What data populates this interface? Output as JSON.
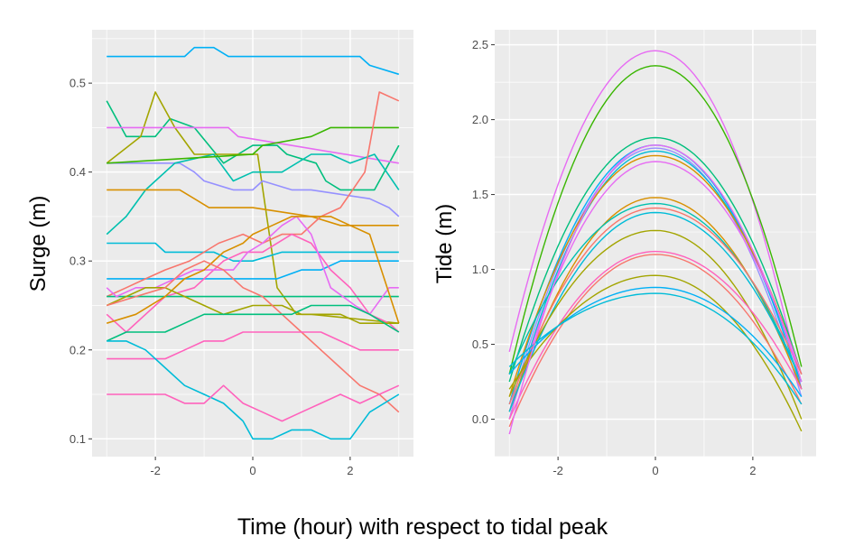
{
  "figure": {
    "xlabel": "Time (hour) with respect to tidal peak"
  },
  "chart_data": [
    {
      "type": "line",
      "ylabel": "Surge (m)",
      "xlim": [
        -3.3,
        3.3
      ],
      "ylim": [
        0.08,
        0.56
      ],
      "xticks": [
        -2,
        0,
        2
      ],
      "xtick_labels": [
        "-2",
        "0",
        "2"
      ],
      "yticks": [
        0.1,
        0.2,
        0.3,
        0.4,
        0.5
      ],
      "ytick_labels": [
        "0.1",
        "0.2",
        "0.3",
        "0.4",
        "0.5"
      ],
      "grid": true,
      "legend": "none",
      "series": [
        {
          "color": "#00b0f6",
          "x": [
            -3,
            -1.4,
            -1.2,
            -0.8,
            -0.5,
            2.2,
            2.4,
            3
          ],
          "y": [
            0.53,
            0.53,
            0.54,
            0.54,
            0.53,
            0.53,
            0.52,
            0.51
          ]
        },
        {
          "color": "#00bf7d",
          "x": [
            -3,
            -2.8,
            -2.6,
            -2,
            -1.7,
            -1.2,
            -0.9,
            -0.6,
            0,
            0.5,
            0.7,
            1.3,
            1.5,
            1.8,
            2.5,
            3
          ],
          "y": [
            0.48,
            0.46,
            0.44,
            0.44,
            0.46,
            0.45,
            0.43,
            0.41,
            0.43,
            0.43,
            0.42,
            0.41,
            0.39,
            0.38,
            0.38,
            0.43
          ]
        },
        {
          "color": "#a3a500",
          "x": [
            -3,
            -2.3,
            -2,
            -1.6,
            -1.2,
            0.1,
            0.5,
            0.9,
            1.2,
            3
          ],
          "y": [
            0.41,
            0.44,
            0.49,
            0.45,
            0.42,
            0.42,
            0.27,
            0.24,
            0.24,
            0.23
          ]
        },
        {
          "color": "#e76bf3",
          "x": [
            -3,
            -0.5,
            -0.3,
            3
          ],
          "y": [
            0.45,
            0.45,
            0.44,
            0.41
          ]
        },
        {
          "color": "#9590ff",
          "x": [
            -3,
            -1.5,
            -1.2,
            -1,
            -0.4,
            0,
            0.2,
            0.8,
            1.2,
            2.4,
            2.8,
            3
          ],
          "y": [
            0.41,
            0.41,
            0.4,
            0.39,
            0.38,
            0.38,
            0.39,
            0.38,
            0.38,
            0.37,
            0.36,
            0.35
          ]
        },
        {
          "color": "#00c0af",
          "x": [
            -3,
            -2.6,
            -2.2,
            -2,
            -1.6,
            -0.8,
            -0.4,
            0,
            0.6,
            1.2,
            1.6,
            2,
            2.5,
            3
          ],
          "y": [
            0.33,
            0.35,
            0.38,
            0.39,
            0.41,
            0.42,
            0.39,
            0.4,
            0.4,
            0.42,
            0.42,
            0.41,
            0.42,
            0.38
          ]
        },
        {
          "color": "#d89000",
          "x": [
            -3,
            -1.8,
            -1.5,
            -1.2,
            -0.9,
            0,
            1.2,
            1.8,
            3
          ],
          "y": [
            0.38,
            0.38,
            0.38,
            0.37,
            0.36,
            0.36,
            0.35,
            0.34,
            0.34
          ]
        },
        {
          "color": "#39b600",
          "x": [
            -3,
            0,
            0.2,
            1.2,
            1.6,
            3
          ],
          "y": [
            0.41,
            0.42,
            0.43,
            0.44,
            0.45,
            0.45
          ]
        },
        {
          "color": "#00bcd8",
          "x": [
            -3,
            -2,
            -1.8,
            -0.8,
            -0.4,
            0,
            0.6,
            0.8,
            3
          ],
          "y": [
            0.32,
            0.32,
            0.31,
            0.31,
            0.3,
            0.3,
            0.31,
            0.31,
            0.31
          ]
        },
        {
          "color": "#00b0f6",
          "x": [
            -3,
            -1.6,
            -1.3,
            0,
            0.5,
            1,
            1.4,
            1.8,
            2.4,
            2.6,
            3
          ],
          "y": [
            0.28,
            0.28,
            0.28,
            0.28,
            0.28,
            0.29,
            0.29,
            0.3,
            0.3,
            0.3,
            0.3
          ]
        },
        {
          "color": "#f8766d",
          "x": [
            -3,
            -2.6,
            -2.2,
            -1.8,
            -1.3,
            -0.7,
            -0.2,
            0.2,
            0.6,
            1,
            1.4,
            1.8,
            2.3,
            2.6,
            3
          ],
          "y": [
            0.26,
            0.27,
            0.28,
            0.29,
            0.3,
            0.32,
            0.33,
            0.32,
            0.33,
            0.33,
            0.35,
            0.36,
            0.4,
            0.49,
            0.48
          ]
        },
        {
          "color": "#ff62bc",
          "x": [
            -3,
            -2.6,
            -2.2,
            -1.8,
            -1.2,
            -0.6,
            -0.2,
            0.2,
            0.8,
            1.2,
            1.6,
            2,
            2.4,
            2.8,
            3
          ],
          "y": [
            0.24,
            0.22,
            0.24,
            0.26,
            0.27,
            0.3,
            0.31,
            0.31,
            0.33,
            0.32,
            0.29,
            0.27,
            0.24,
            0.23,
            0.22
          ]
        },
        {
          "color": "#00bf7d",
          "x": [
            -3,
            -2.2,
            -1.8,
            -1,
            0,
            0.4,
            0.8,
            1.6,
            3
          ],
          "y": [
            0.26,
            0.26,
            0.26,
            0.26,
            0.26,
            0.26,
            0.26,
            0.26,
            0.26
          ]
        },
        {
          "color": "#e76bf3",
          "x": [
            -3,
            -2.8,
            -2.4,
            -2,
            -1.6,
            -1.2,
            -0.4,
            -0.1,
            0.2,
            0.6,
            0.9,
            1.2,
            1.6,
            2.1,
            2.4,
            2.8,
            3
          ],
          "y": [
            0.27,
            0.26,
            0.27,
            0.27,
            0.28,
            0.29,
            0.29,
            0.31,
            0.32,
            0.34,
            0.35,
            0.33,
            0.27,
            0.25,
            0.24,
            0.27,
            0.27
          ]
        },
        {
          "color": "#d89000",
          "x": [
            -3,
            -2.4,
            -1.8,
            -1.4,
            -1,
            -0.6,
            -0.2,
            0,
            0.4,
            0.8,
            1.2,
            1.6,
            2,
            2.4,
            3
          ],
          "y": [
            0.23,
            0.24,
            0.26,
            0.28,
            0.29,
            0.31,
            0.32,
            0.33,
            0.34,
            0.35,
            0.35,
            0.35,
            0.34,
            0.33,
            0.23
          ]
        },
        {
          "color": "#a3a500",
          "x": [
            -3,
            -2.6,
            -2.2,
            -1.8,
            -1.4,
            -1,
            -0.6,
            0,
            0.6,
            1,
            1.4,
            1.8,
            2.2,
            2.6,
            3
          ],
          "y": [
            0.25,
            0.26,
            0.27,
            0.27,
            0.26,
            0.25,
            0.24,
            0.25,
            0.25,
            0.24,
            0.24,
            0.24,
            0.23,
            0.23,
            0.23
          ]
        },
        {
          "color": "#f8766d",
          "x": [
            -3,
            -2.4,
            -1.8,
            -1.4,
            -1,
            -0.6,
            -0.2,
            0.2,
            0.6,
            1,
            1.4,
            1.8,
            2.2,
            2.6,
            3
          ],
          "y": [
            0.25,
            0.26,
            0.27,
            0.29,
            0.3,
            0.29,
            0.27,
            0.26,
            0.24,
            0.22,
            0.2,
            0.18,
            0.16,
            0.15,
            0.13
          ]
        },
        {
          "color": "#00bf7d",
          "x": [
            -3,
            -2.6,
            -2.2,
            -1.8,
            -1.4,
            -1,
            -0.6,
            -0.2,
            0.2,
            0.8,
            1.2,
            1.6,
            2,
            2.4,
            3
          ],
          "y": [
            0.21,
            0.22,
            0.22,
            0.22,
            0.23,
            0.24,
            0.24,
            0.24,
            0.24,
            0.24,
            0.25,
            0.25,
            0.25,
            0.24,
            0.22
          ]
        },
        {
          "color": "#ff62bc",
          "x": [
            -3,
            -2.4,
            -1.8,
            -1.4,
            -1,
            -0.6,
            -0.2,
            0.2,
            0.6,
            1,
            1.4,
            1.8,
            2.2,
            2.6,
            3
          ],
          "y": [
            0.19,
            0.19,
            0.19,
            0.2,
            0.21,
            0.21,
            0.22,
            0.22,
            0.22,
            0.22,
            0.22,
            0.21,
            0.2,
            0.2,
            0.2
          ]
        },
        {
          "color": "#00bcd8",
          "x": [
            -3,
            -2.6,
            -2.2,
            -1.8,
            -1.4,
            -1,
            -0.6,
            -0.2,
            0,
            0.4,
            0.8,
            1.2,
            1.6,
            2,
            2.4,
            3
          ],
          "y": [
            0.21,
            0.21,
            0.2,
            0.18,
            0.16,
            0.15,
            0.14,
            0.12,
            0.1,
            0.1,
            0.11,
            0.11,
            0.1,
            0.1,
            0.13,
            0.15
          ]
        },
        {
          "color": "#ff62bc",
          "x": [
            -3,
            -2.4,
            -1.8,
            -1.4,
            -1,
            -0.6,
            -0.2,
            0.2,
            0.6,
            1,
            1.4,
            1.8,
            2.2,
            2.6,
            3
          ],
          "y": [
            0.15,
            0.15,
            0.15,
            0.14,
            0.14,
            0.16,
            0.14,
            0.13,
            0.12,
            0.13,
            0.14,
            0.15,
            0.14,
            0.15,
            0.16
          ]
        }
      ]
    },
    {
      "type": "line",
      "ylabel": "Tide (m)",
      "xlim": [
        -3.3,
        3.3
      ],
      "ylim": [
        -0.25,
        2.6
      ],
      "xticks": [
        -2,
        0,
        2
      ],
      "xtick_labels": [
        "-2",
        "0",
        "2"
      ],
      "yticks": [
        0.0,
        0.5,
        1.0,
        1.5,
        2.0,
        2.5
      ],
      "ytick_labels": [
        "0.0",
        "0.5",
        "1.0",
        "1.5",
        "2.0",
        "2.5"
      ],
      "grid": true,
      "legend": "none",
      "parabolas": [
        {
          "color": "#e76bf3",
          "peak": 2.46,
          "start": 0.45,
          "end": 0.2
        },
        {
          "color": "#39b600",
          "peak": 2.36,
          "start": 0.3,
          "end": 0.35
        },
        {
          "color": "#00bf7d",
          "peak": 1.88,
          "start": 0.25,
          "end": 0.3
        },
        {
          "color": "#00b0f6",
          "peak": 1.83,
          "start": 0.1,
          "end": 0.2
        },
        {
          "color": "#9590ff",
          "peak": 1.81,
          "start": 0.05,
          "end": 0.15
        },
        {
          "color": "#00bcd8",
          "peak": 1.79,
          "start": 0.0,
          "end": 0.25
        },
        {
          "color": "#d89000",
          "peak": 1.76,
          "start": 0.15,
          "end": 0.3
        },
        {
          "color": "#e76bf3",
          "peak": 1.72,
          "start": 0.0,
          "end": 0.3
        },
        {
          "color": "#d89000",
          "peak": 1.48,
          "start": 0.05,
          "end": 0.2
        },
        {
          "color": "#00c0af",
          "peak": 1.44,
          "start": 0.3,
          "end": 0.25
        },
        {
          "color": "#f8766d",
          "peak": 1.41,
          "start": 0.1,
          "end": 0.3
        },
        {
          "color": "#00bcd8",
          "peak": 1.38,
          "start": 0.05,
          "end": 0.25
        },
        {
          "color": "#a3a500",
          "peak": 1.26,
          "start": 0.15,
          "end": 0.0
        },
        {
          "color": "#ff62bc",
          "peak": 1.12,
          "start": 0.0,
          "end": 0.2
        },
        {
          "color": "#f8766d",
          "peak": 1.1,
          "start": -0.05,
          "end": 0.1
        },
        {
          "color": "#a3a500",
          "peak": 0.96,
          "start": 0.2,
          "end": -0.08
        },
        {
          "color": "#00b0f6",
          "peak": 0.88,
          "start": 0.3,
          "end": 0.15
        },
        {
          "color": "#00bcd8",
          "peak": 0.84,
          "start": 0.35,
          "end": 0.1
        },
        {
          "color": "#e76bf3",
          "peak": 1.83,
          "start": -0.1,
          "end": 0.25
        }
      ]
    }
  ]
}
